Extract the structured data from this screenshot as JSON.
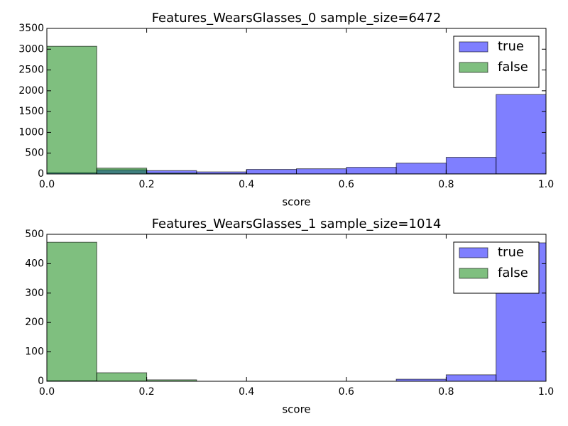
{
  "chart_data": [
    {
      "type": "histogram",
      "title": "Features_WearsGlasses_0 sample_size=6472",
      "x_label": "score",
      "bins": [
        0,
        0.1,
        0.2,
        0.3,
        0.4,
        0.5,
        0.6,
        0.7,
        0.8,
        0.9,
        1.0
      ],
      "series": [
        {
          "name": "true",
          "color": "#0000ff",
          "values": [
            30,
            100,
            80,
            50,
            110,
            125,
            160,
            260,
            400,
            1910
          ]
        },
        {
          "name": "false",
          "color": "#008000",
          "values": [
            3070,
            140,
            20,
            5,
            3,
            2,
            2,
            2,
            2,
            3
          ]
        }
      ],
      "xlim": [
        0,
        1.0
      ],
      "xticks": [
        {
          "value": 0,
          "label": "0.0"
        },
        0.2,
        0.4,
        0.6,
        0.8,
        {
          "value": 1.0,
          "label": "1.0"
        }
      ],
      "ylim": [
        0,
        3500
      ],
      "yticks": [
        0,
        500,
        1000,
        1500,
        2000,
        2500,
        3000,
        3500
      ],
      "legend": "upper right",
      "opacity": 0.5
    },
    {
      "type": "histogram",
      "title": "Features_WearsGlasses_1 sample_size=1014",
      "x_label": "score",
      "bins": [
        0,
        0.1,
        0.2,
        0.3,
        0.4,
        0.5,
        0.6,
        0.7,
        0.8,
        0.9,
        1.0
      ],
      "series": [
        {
          "name": "true",
          "color": "#0000ff",
          "values": [
            2,
            1,
            0,
            0,
            0,
            0,
            0,
            7,
            22,
            471
          ]
        },
        {
          "name": "false",
          "color": "#008000",
          "values": [
            473,
            29,
            5,
            0,
            0,
            0,
            0,
            0,
            0,
            0
          ]
        }
      ],
      "xlim": [
        0,
        1.0
      ],
      "xticks": [
        {
          "value": 0,
          "label": "0.0"
        },
        0.2,
        0.4,
        0.6,
        0.8,
        {
          "value": 1.0,
          "label": "1.0"
        }
      ],
      "ylim": [
        0,
        500
      ],
      "yticks": [
        0,
        100,
        200,
        300,
        400,
        500
      ],
      "legend": "upper right",
      "opacity": 0.5
    }
  ]
}
